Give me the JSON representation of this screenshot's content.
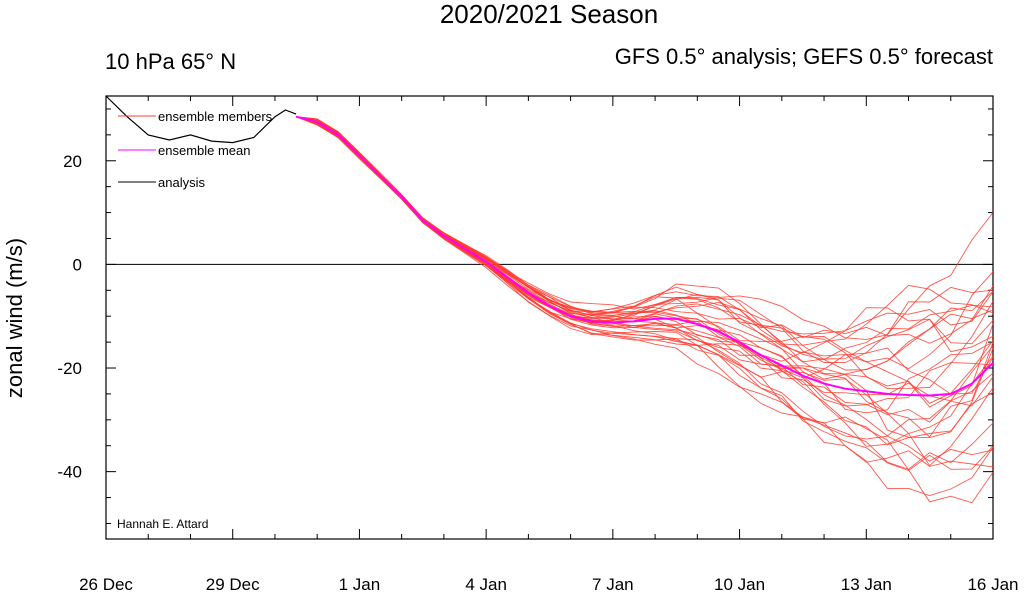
{
  "chart_data": {
    "type": "line",
    "title": "2020/2021 Season",
    "subtitle_left": "10 hPa 65° N",
    "subtitle_right": "GFS 0.5° analysis; GEFS 0.5° forecast",
    "xlabel": "",
    "ylabel": "zonal wind (m/s)",
    "credit": "Hannah E. Attard",
    "xlim": [
      0,
      21
    ],
    "ylim": [
      -53,
      32.5
    ],
    "x_ticks": [
      {
        "x": 0,
        "label": "26 Dec"
      },
      {
        "x": 3,
        "label": "29 Dec"
      },
      {
        "x": 6,
        "label": "1 Jan"
      },
      {
        "x": 9,
        "label": "4 Jan"
      },
      {
        "x": 12,
        "label": "7 Jan"
      },
      {
        "x": 15,
        "label": "10 Jan"
      },
      {
        "x": 18,
        "label": "13 Jan"
      },
      {
        "x": 21,
        "label": "16 Jan"
      }
    ],
    "y_ticks": [
      20,
      0,
      -20,
      -40
    ],
    "zero_line": 0,
    "legend": {
      "placement": "top-left",
      "entries": [
        {
          "label": "ensemble members",
          "color": "#ff3b2f"
        },
        {
          "label": "ensemble mean",
          "color": "#ff00ff"
        },
        {
          "label": "analysis",
          "color": "#000000"
        }
      ]
    },
    "series": [
      {
        "name": "analysis",
        "color": "#000000",
        "x": [
          0,
          0.5,
          1,
          1.5,
          2,
          2.5,
          3,
          3.5,
          4,
          4.25,
          4.5
        ],
        "y": [
          32.5,
          28.5,
          25,
          24,
          25,
          23.8,
          23.5,
          24.5,
          28.5,
          29.8,
          29
        ]
      },
      {
        "name": "ensemble mean",
        "color": "#ff00ff",
        "x": [
          4.5,
          5,
          5.5,
          6,
          6.5,
          7,
          7.5,
          8,
          8.5,
          9,
          9.5,
          10,
          10.5,
          11,
          11.5,
          12,
          12.5,
          13,
          13.5,
          14,
          14.5,
          15,
          15.5,
          16,
          16.5,
          17,
          17.5,
          18,
          18.5,
          19,
          19.5,
          20,
          20.5,
          21
        ],
        "y": [
          28.5,
          27.5,
          25,
          21,
          17,
          13,
          8.5,
          5.5,
          3,
          0.5,
          -2.5,
          -5.5,
          -8,
          -10,
          -11,
          -11.2,
          -11,
          -10.5,
          -10.5,
          -11.5,
          -13,
          -15,
          -17.5,
          -19.5,
          -21.5,
          -23,
          -24,
          -24.5,
          -25,
          -25.2,
          -25.3,
          -25,
          -23,
          -19
        ]
      }
    ]
  }
}
